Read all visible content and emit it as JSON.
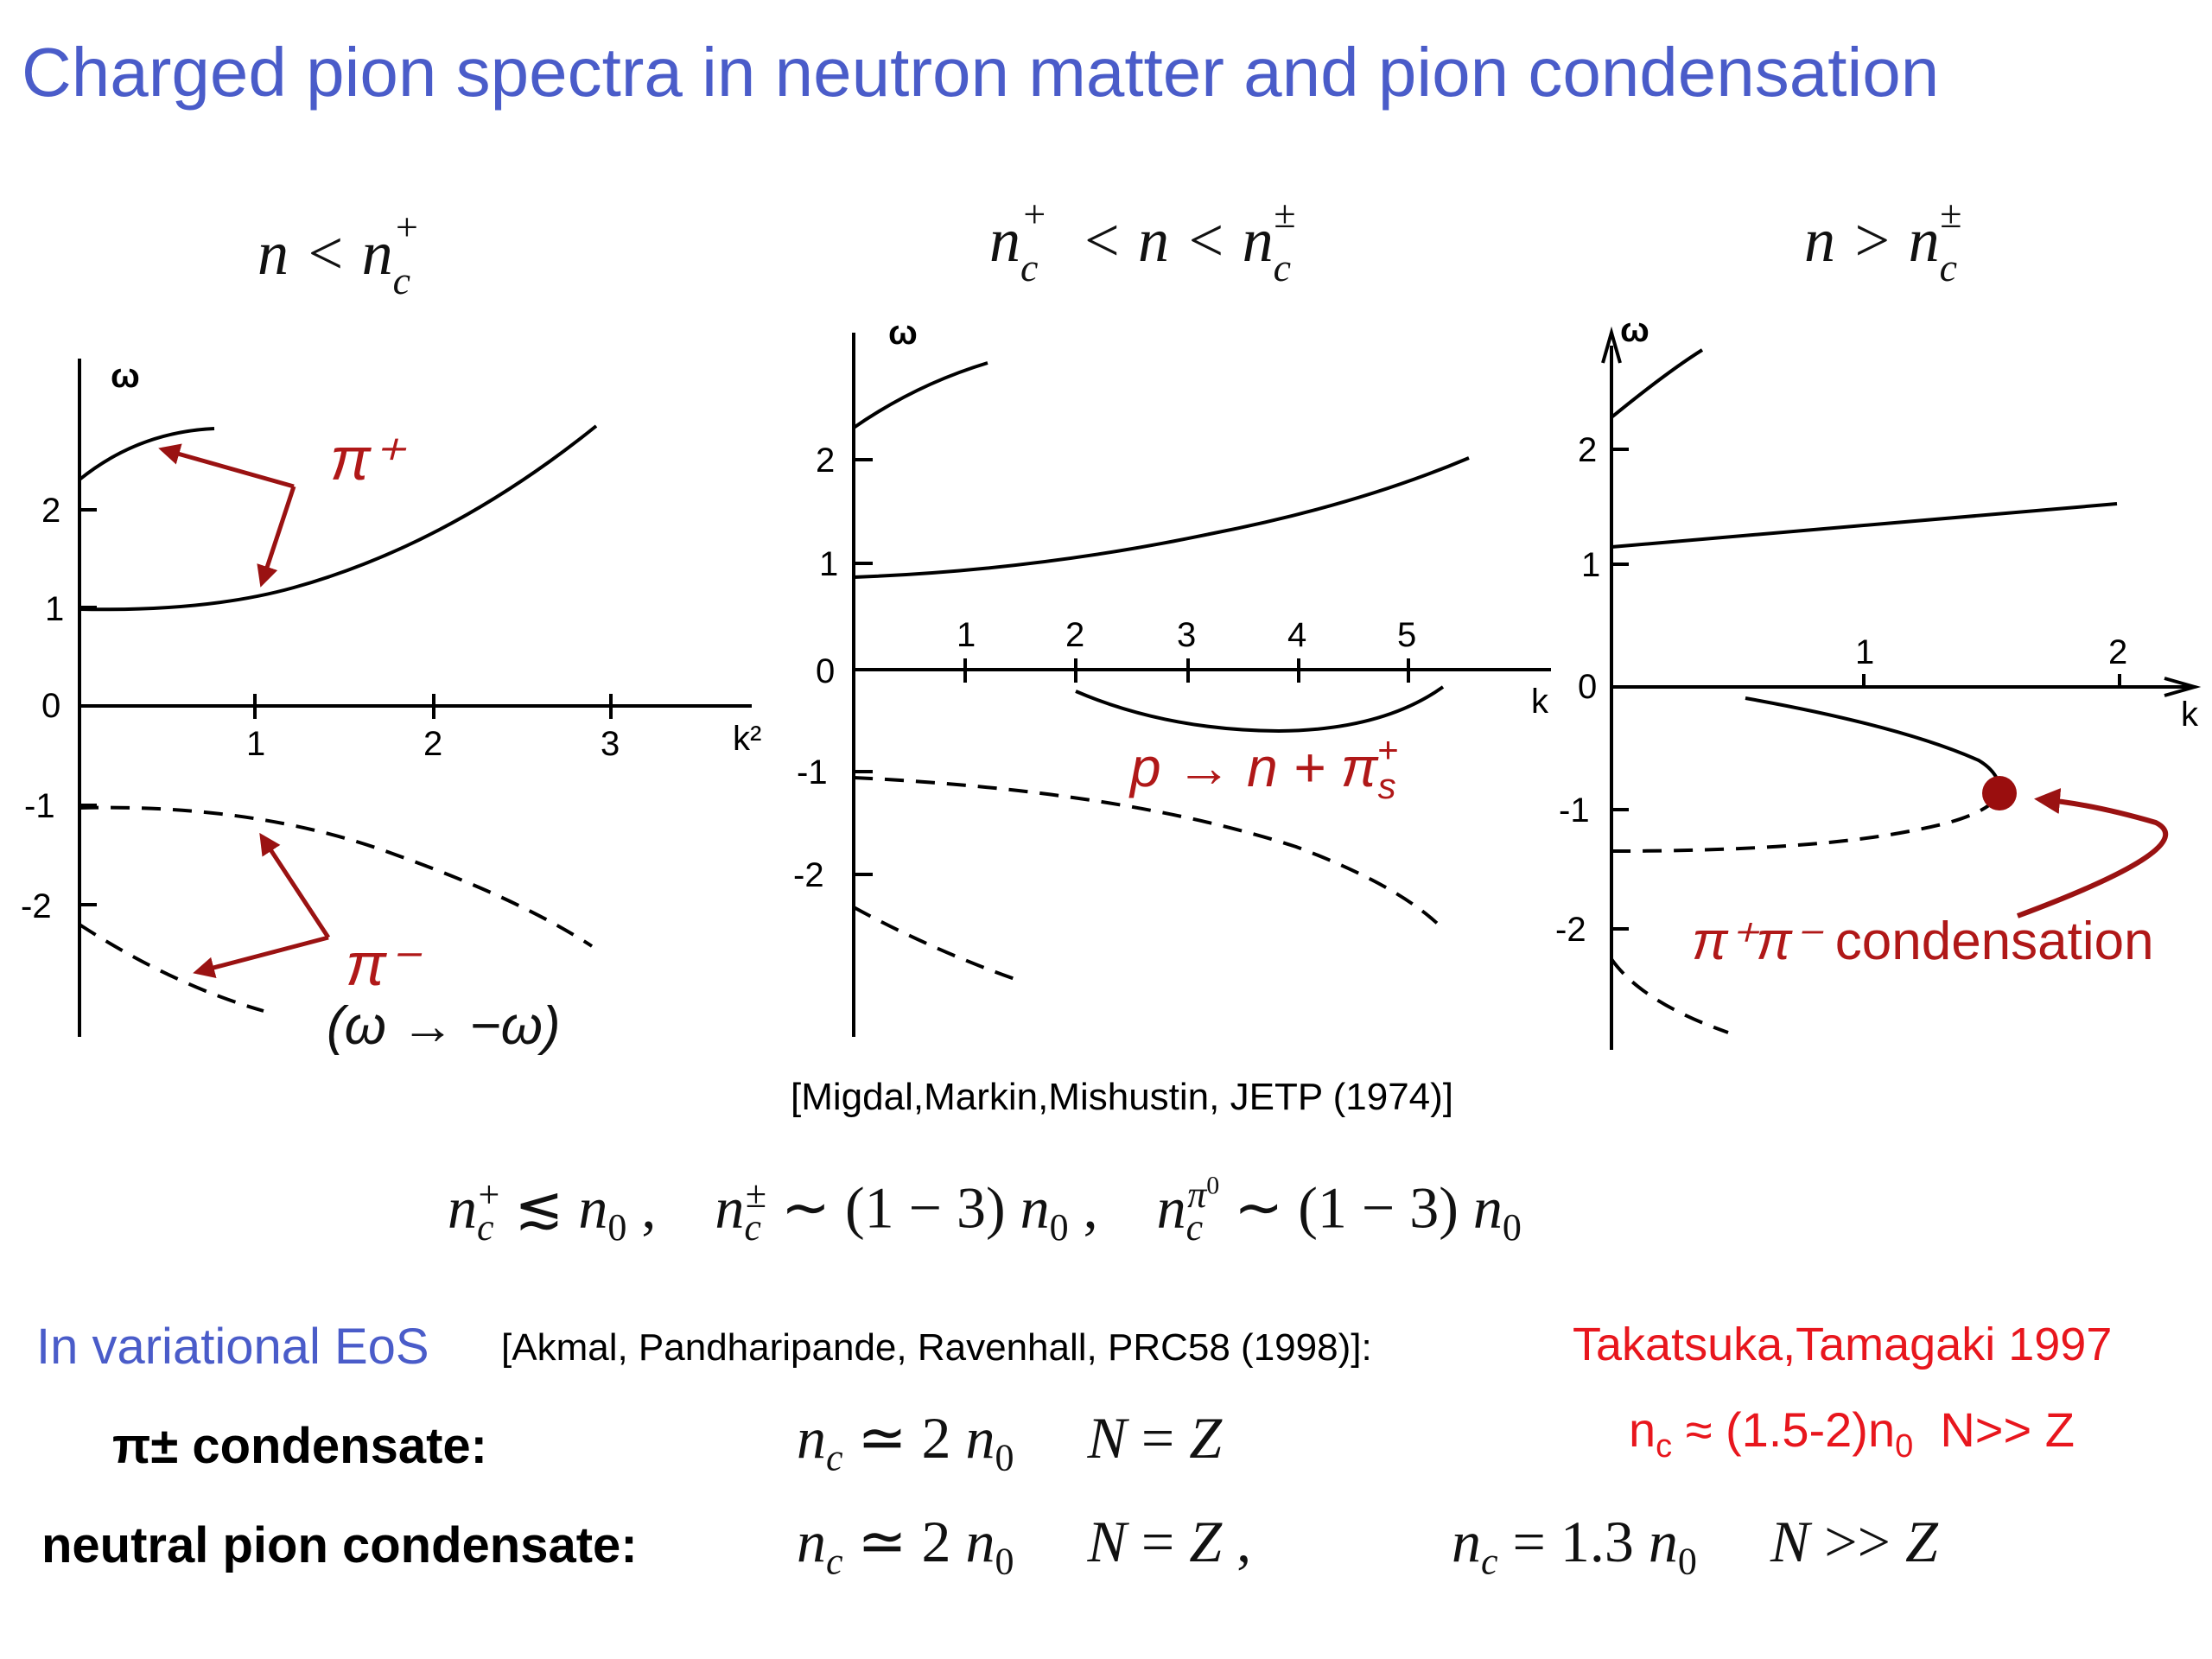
{
  "title": "Charged pion spectra in neutron matter and pion condensation",
  "panels": [
    {
      "condition": "n < n_c^+",
      "y_axis_label": "ω",
      "x_axis_label": "k²",
      "y_ticks": [
        "2",
        "1",
        "0",
        "-1",
        "-2"
      ],
      "x_ticks": [
        "1",
        "2",
        "3"
      ],
      "annotations": [
        "π⁺",
        "π⁻",
        "(ω → −ω)"
      ]
    },
    {
      "condition": "n_c^+ < n < n_c^±",
      "y_axis_label": "ω",
      "x_axis_label": "k",
      "y_ticks": [
        "2",
        "1",
        "0",
        "-1",
        "-2"
      ],
      "x_ticks": [
        "1",
        "2",
        "3",
        "4",
        "5"
      ],
      "annotations": [
        "p → n + π_s⁺"
      ]
    },
    {
      "condition": "n > n_c^±",
      "y_axis_label": "ω",
      "x_axis_label": "k",
      "y_ticks": [
        "2",
        "1",
        "0",
        "-1",
        "-2"
      ],
      "x_ticks": [
        "1",
        "2"
      ],
      "annotations": [
        "π⁺π⁻ condensation"
      ]
    }
  ],
  "citation": "[Migdal,Markin,Mishustin, JETP (1974)]",
  "relations": "n_c^+ ≲ n₀ , n_c^± ∼ (1 − 3) n₀ , n_c^π⁰ ∼ (1 − 3) n₀",
  "variational": {
    "label": "In variational EoS",
    "reference": "[Akmal, Pandharipande, Ravenhall, PRC58 (1998)]:",
    "other_reference": "Takatsuka,Tamagaki 1997"
  },
  "rows": [
    {
      "label": "π± condensate:",
      "formula": "n_c ≃ 2 n₀    N = Z",
      "other": "n_c ≈ (1.5-2)n_0  N>> Z"
    },
    {
      "label": "neutral pion condensate:",
      "formula": "n_c ≃ 2 n₀    N = Z ,",
      "formula2": "n_c = 1.3 n₀    N >> Z"
    }
  ],
  "colors": {
    "title": "#4a5cc9",
    "annotation_red": "#b01818",
    "takatsuka_red": "#e8161d",
    "curve": "#000000"
  }
}
